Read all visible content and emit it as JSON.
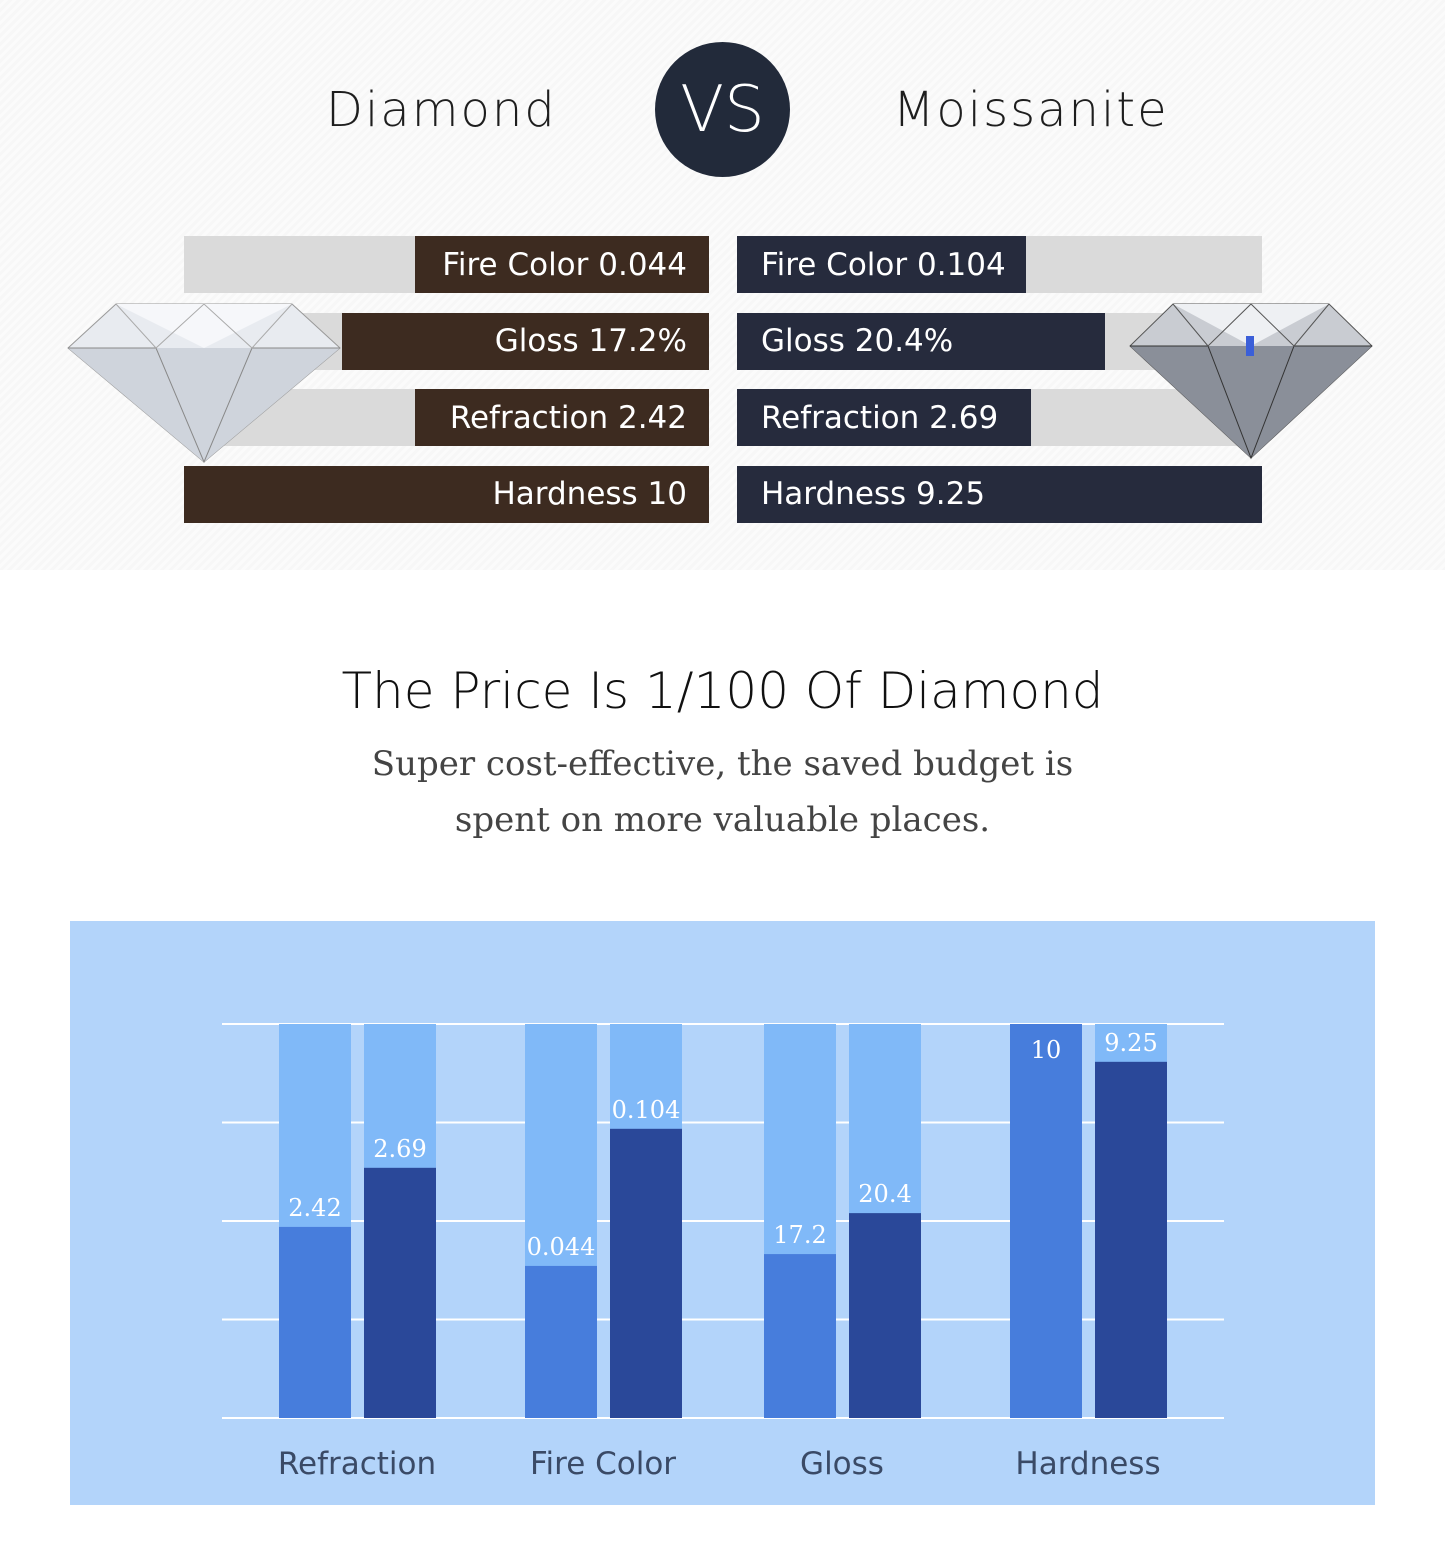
{
  "header": {
    "left_title": "Diamond",
    "vs": "VS",
    "right_title": "Moissanite"
  },
  "comparison": {
    "diamond": [
      {
        "label": "Fire Color 0.044",
        "level": 0.56
      },
      {
        "label": "Gloss 17.2%",
        "level": 0.7
      },
      {
        "label": "Refraction 2.42",
        "level": 0.56
      },
      {
        "label": "Hardness 10",
        "level": 1.0
      }
    ],
    "moissanite": [
      {
        "label": "Fire Color 0.104",
        "level": 0.55
      },
      {
        "label": "Gloss 20.4%",
        "level": 0.7
      },
      {
        "label": "Refraction 2.69",
        "level": 0.56
      },
      {
        "label": "Hardness 9.25",
        "level": 1.0
      }
    ],
    "colors": {
      "diamond": "#3d2b20",
      "moissanite": "#262b3d",
      "track": "#dadada"
    }
  },
  "price": {
    "title": "The Price Is 1/100 Of Diamond",
    "subtitle_line1": "Super cost-effective, the saved budget is",
    "subtitle_line2": "spent on more valuable places."
  },
  "chart_data": {
    "type": "bar",
    "categories": [
      "Refraction",
      "Fire Color",
      "Gloss",
      "Hardness"
    ],
    "series": [
      {
        "values": [
          2.42,
          0.044,
          17.2,
          10
        ],
        "labels": [
          "2.42",
          "0.044",
          "17.2",
          "10"
        ],
        "fill_level": [
          0.485,
          0.386,
          0.416,
          1.0
        ],
        "color": "#477ddc"
      },
      {
        "values": [
          2.69,
          0.104,
          20.4,
          9.25
        ],
        "labels": [
          "2.69",
          "0.104",
          "20.4",
          "9.25"
        ],
        "fill_level": [
          0.635,
          0.734,
          0.52,
          0.904
        ],
        "color": "#2a4899"
      }
    ],
    "track_color": "#80b9f8",
    "background": "#b3d4fa",
    "grid": true
  }
}
